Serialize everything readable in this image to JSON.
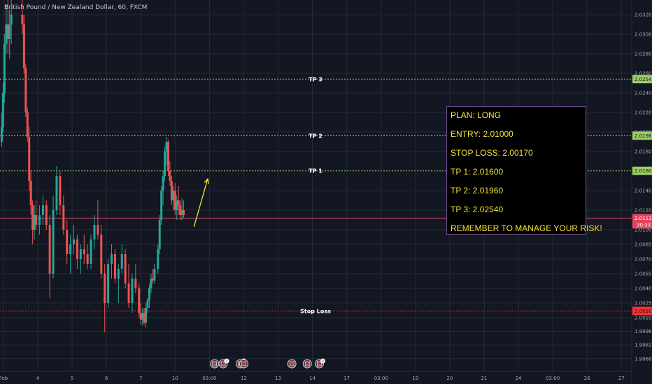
{
  "title": "British Pound / New Zealand Dollar, 60, FXCM",
  "colors": {
    "background": "#131722",
    "grid": "#242a36",
    "up": "#26a69a",
    "down": "#ef5350",
    "tp": "#9ccc65",
    "stop": "#ff3030",
    "price": "#e0435f",
    "plan_text": "#f5e23a",
    "plan_border": "#6b4a8f",
    "arrow": "#f5e23a"
  },
  "chart_data": {
    "type": "candlestick",
    "title": "British Pound / New Zealand Dollar, 60, FXCM",
    "y_axis": {
      "position": "right",
      "ylim": [
        1.9955,
        2.0335
      ],
      "tick_labels": [
        "2.03200",
        "2.03000",
        "2.02800",
        "2.02600",
        "2.02400",
        "2.02200",
        "2.02000",
        "2.01800",
        "2.01400",
        "2.01200",
        "2.01000",
        "2.00850",
        "2.00700",
        "2.00550",
        "2.00400",
        "2.00250",
        "2.00100",
        "1.99960",
        "1.99820",
        "1.99680"
      ]
    },
    "x_axis": {
      "tick_labels": [
        "Feb",
        "4",
        "5",
        "6",
        "7",
        "10",
        "03:00",
        "12",
        "13",
        "14",
        "17",
        "03:00",
        "19",
        "20",
        "21",
        "24",
        "03:00",
        "26",
        "27"
      ],
      "tick_positions": [
        0,
        1,
        2,
        3,
        4,
        5,
        6,
        7,
        8,
        9,
        10,
        11,
        12,
        13,
        14,
        15,
        16,
        17,
        18
      ],
      "visible_range": [
        -0.1,
        18.3
      ]
    },
    "grid": true,
    "levels": [
      {
        "label": "TP 3",
        "price": 2.02541,
        "tag": "2.02541",
        "style": "tp"
      },
      {
        "label": "TP 2",
        "price": 2.01962,
        "tag": "2.01962",
        "style": "tp"
      },
      {
        "label": "TP 1",
        "price": 2.01602,
        "tag": "2.01602",
        "style": "tp"
      },
      {
        "label": "Stop Loss",
        "price": 2.00169,
        "tag": "2.00169",
        "style": "stop"
      }
    ],
    "current_price": {
      "price": 2.01119,
      "tag": "2.01119",
      "countdown": "30:33"
    },
    "candles_key": [
      "x",
      "open",
      "high",
      "low",
      "close"
    ],
    "candles": [
      [
        -0.05,
        2.019,
        2.022,
        2.0185,
        2.0205
      ],
      [
        -0.01,
        2.0205,
        2.025,
        2.02,
        2.024
      ],
      [
        0.03,
        2.024,
        2.03,
        2.023,
        2.029
      ],
      [
        0.08,
        2.029,
        2.033,
        2.028,
        2.031
      ],
      [
        0.13,
        2.031,
        2.0335,
        2.028,
        2.0295
      ],
      [
        0.18,
        2.0295,
        2.0325,
        2.0275,
        2.031
      ],
      [
        0.23,
        2.031,
        2.0335,
        2.029,
        2.032
      ],
      [
        0.55,
        2.032,
        2.0335,
        2.03,
        2.031
      ],
      [
        0.6,
        2.031,
        2.032,
        2.026,
        2.0265
      ],
      [
        0.65,
        2.0265,
        2.027,
        2.0215,
        2.022
      ],
      [
        0.7,
        2.022,
        2.0225,
        2.019,
        2.0195
      ],
      [
        0.75,
        2.0195,
        2.0205,
        2.014,
        2.015
      ],
      [
        0.8,
        2.015,
        2.016,
        2.0115,
        2.0125
      ],
      [
        0.85,
        2.0125,
        2.013,
        2.0085,
        2.01
      ],
      [
        0.9,
        2.01,
        2.0125,
        2.009,
        2.0115
      ],
      [
        0.95,
        2.0115,
        2.013,
        2.01,
        2.0105
      ],
      [
        1.05,
        2.0105,
        2.0125,
        2.0095,
        2.0115
      ],
      [
        1.15,
        2.0115,
        2.0135,
        2.0105,
        2.0125
      ],
      [
        1.25,
        2.0125,
        2.013,
        2.01,
        2.0105
      ],
      [
        1.35,
        2.0105,
        2.0115,
        2.003,
        2.0055
      ],
      [
        1.45,
        2.0055,
        2.0135,
        2.005,
        2.012
      ],
      [
        1.55,
        2.012,
        2.0165,
        2.0115,
        2.0155
      ],
      [
        1.65,
        2.0155,
        2.016,
        2.0115,
        2.0125
      ],
      [
        1.75,
        2.0125,
        2.0135,
        2.0095,
        2.01
      ],
      [
        1.85,
        2.01,
        2.011,
        2.0065,
        2.0075
      ],
      [
        1.95,
        2.0075,
        2.0095,
        2.0055,
        2.0085
      ],
      [
        2.05,
        2.0085,
        2.0105,
        2.0075,
        2.009
      ],
      [
        2.15,
        2.009,
        2.0095,
        2.006,
        2.007
      ],
      [
        2.25,
        2.007,
        2.0085,
        2.0055,
        2.008
      ],
      [
        2.35,
        2.008,
        2.0095,
        2.0065,
        2.0075
      ],
      [
        2.45,
        2.0075,
        2.0085,
        2.006,
        2.0065
      ],
      [
        2.55,
        2.0065,
        2.0095,
        2.006,
        2.009
      ],
      [
        2.65,
        2.009,
        2.0115,
        2.008,
        2.0105
      ],
      [
        2.75,
        2.0105,
        2.013,
        2.009,
        2.0095
      ],
      [
        2.85,
        2.0095,
        2.0105,
        2.005,
        2.0055
      ],
      [
        2.95,
        2.0055,
        2.0065,
        1.9995,
        2.0025
      ],
      [
        3.05,
        2.0025,
        2.007,
        2.002,
        2.0065
      ],
      [
        3.15,
        2.0065,
        2.0085,
        2.005,
        2.0075
      ],
      [
        3.25,
        2.0075,
        2.008,
        2.0045,
        2.005
      ],
      [
        3.35,
        2.005,
        2.0065,
        2.0025,
        2.006
      ],
      [
        3.45,
        2.006,
        2.0085,
        2.0055,
        2.0075
      ],
      [
        3.55,
        2.0075,
        2.008,
        2.004,
        2.0045
      ],
      [
        3.65,
        2.0045,
        2.0065,
        2.002,
        2.0025
      ],
      [
        3.75,
        2.0025,
        2.0055,
        2.0015,
        2.005
      ],
      [
        3.85,
        2.005,
        2.0065,
        2.0035,
        2.004
      ],
      [
        3.95,
        2.004,
        2.0045,
        2.001,
        2.0015
      ],
      [
        4.0,
        2.0015,
        2.0025,
        2.0003,
        2.0008
      ],
      [
        4.05,
        2.0008,
        2.002,
        2.0002,
        2.0015
      ],
      [
        4.1,
        2.0015,
        2.002,
        2.0003,
        2.0005
      ],
      [
        4.15,
        2.0005,
        2.0025,
        2.0,
        2.002
      ],
      [
        4.2,
        2.002,
        2.003,
        2.0015,
        2.0028
      ],
      [
        4.25,
        2.0028,
        2.0045,
        2.002,
        2.004
      ],
      [
        4.3,
        2.004,
        2.0055,
        2.0035,
        2.005
      ],
      [
        4.35,
        2.005,
        2.006,
        2.0045,
        2.0048
      ],
      [
        4.4,
        2.0048,
        2.0065,
        2.0045,
        2.006
      ],
      [
        4.5,
        2.006,
        2.0085,
        2.0055,
        2.008
      ],
      [
        4.55,
        2.008,
        2.0115,
        2.0075,
        2.011
      ],
      [
        4.6,
        2.011,
        2.0145,
        2.0105,
        2.014
      ],
      [
        4.65,
        2.014,
        2.016,
        2.0125,
        2.0155
      ],
      [
        4.7,
        2.0155,
        2.0185,
        2.015,
        2.018
      ],
      [
        4.75,
        2.018,
        2.0195,
        2.0165,
        2.019
      ],
      [
        4.8,
        2.019,
        2.0192,
        2.0155,
        2.016
      ],
      [
        4.85,
        2.016,
        2.017,
        2.0145,
        2.015
      ],
      [
        4.9,
        2.015,
        2.0155,
        2.0125,
        2.013
      ],
      [
        4.95,
        2.013,
        2.0145,
        2.012,
        2.014
      ],
      [
        5.0,
        2.014,
        2.0148,
        2.0115,
        2.012
      ],
      [
        5.05,
        2.012,
        2.0135,
        2.011,
        2.013
      ],
      [
        5.1,
        2.013,
        2.0145,
        2.0115,
        2.0125
      ],
      [
        5.15,
        2.0125,
        2.013,
        2.011,
        2.0115
      ],
      [
        5.2,
        2.0115,
        2.0132,
        2.011,
        2.012
      ],
      [
        5.25,
        2.012,
        2.013,
        2.0112,
        2.0115
      ]
    ],
    "annotations": [
      {
        "type": "arrow",
        "from": {
          "x": 5.55,
          "y": 2.0103
        },
        "to": {
          "x": 5.95,
          "y": 2.0152
        }
      }
    ],
    "event_markers": [
      {
        "x": 6.15,
        "badge": ""
      },
      {
        "x": 6.4,
        "badge": "1"
      },
      {
        "x": 6.9,
        "badge": "2"
      },
      {
        "x": 7.0,
        "badge": ""
      },
      {
        "x": 8.4,
        "badge": ""
      },
      {
        "x": 8.85,
        "badge": ""
      },
      {
        "x": 9.2,
        "badge": "2"
      }
    ]
  },
  "plan": {
    "lines": [
      "PLAN: LONG",
      "ENTRY: 2.01000",
      "STOP LOSS: 2.00170",
      "TP 1: 2.01600",
      "TP 2: 2.01960",
      "TP 3: 2.02540",
      "REMEMBER TO MANAGE YOUR RISK!"
    ]
  }
}
